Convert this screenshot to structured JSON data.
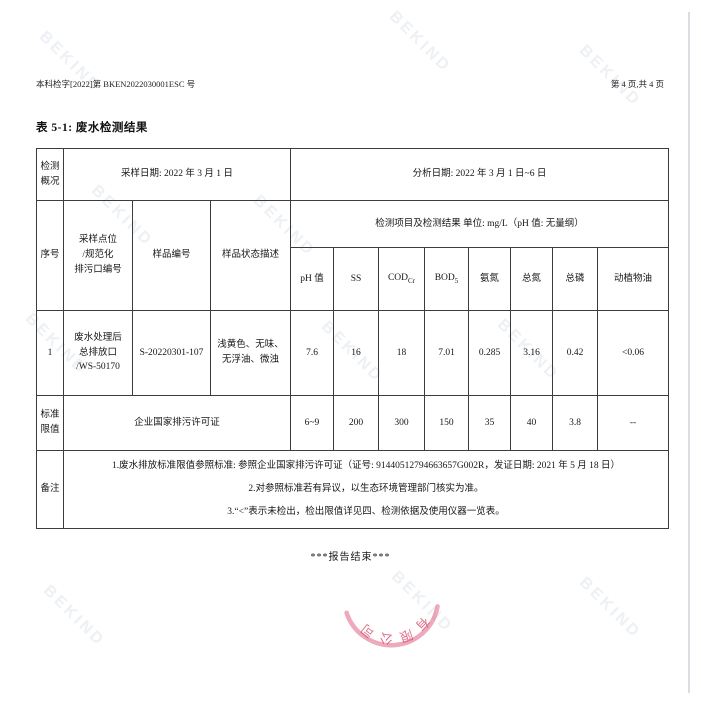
{
  "page": {
    "doc_number": "本科检字[2022]第 BKEN2022030001ESC 号",
    "page_info": "第 4 页,共 4 页",
    "title": "表 5-1: 废水检测结果",
    "end_note": "***报告结束***",
    "watermark_text": "BEKIND",
    "stamp_text": "有限公司",
    "stamp_color": "#dd4f6e"
  },
  "table": {
    "overview": {
      "label": "检测\n概况",
      "sampling_date": "采样日期: 2022 年 3 月 1 日",
      "analysis_date": "分析日期: 2022 年 3 月 1 日~6 日"
    },
    "header": {
      "seq": "序号",
      "point": "采样点位\n/规范化\n排污口编号",
      "sample_no": "样品编号",
      "sample_desc": "样品状态描述",
      "results_title": "检测项目及检测结果 单位: mg/L（pH 值: 无量纲）",
      "params": [
        {
          "t": "pH 值",
          "s": ""
        },
        {
          "t": "SS",
          "s": ""
        },
        {
          "t": "COD",
          "s": "Cr"
        },
        {
          "t": "BOD",
          "s": "5"
        },
        {
          "t": "氨氮",
          "s": ""
        },
        {
          "t": "总氮",
          "s": ""
        },
        {
          "t": "总磷",
          "s": ""
        },
        {
          "t": "动植物油",
          "s": ""
        }
      ]
    },
    "rows": [
      {
        "seq": "1",
        "point": "废水处理后\n总排放口\n/WS-50170",
        "sample_no": "S-20220301-107",
        "sample_desc": "浅黄色、无味、\n无浮油、微浊",
        "values": [
          "7.6",
          "16",
          "18",
          "7.01",
          "0.285",
          "3.16",
          "0.42",
          "<0.06"
        ]
      }
    ],
    "limits": {
      "label": "标准\n限值",
      "basis": "企业国家排污许可证",
      "values": [
        "6~9",
        "200",
        "300",
        "150",
        "35",
        "40",
        "3.8",
        "--"
      ]
    },
    "remarks": {
      "label": "备注",
      "lines": [
        "1.废水排放标准限值参照标准: 参照企业国家排污许可证（证号: 91440512794663657G002R，发证日期: 2021 年 5 月 18 日）",
        "2.对参照标准若有异议，以生态环境管理部门核实为准。",
        "3.“<”表示未检出，检出限值详见四、检测依据及使用仪器一览表。"
      ]
    }
  }
}
